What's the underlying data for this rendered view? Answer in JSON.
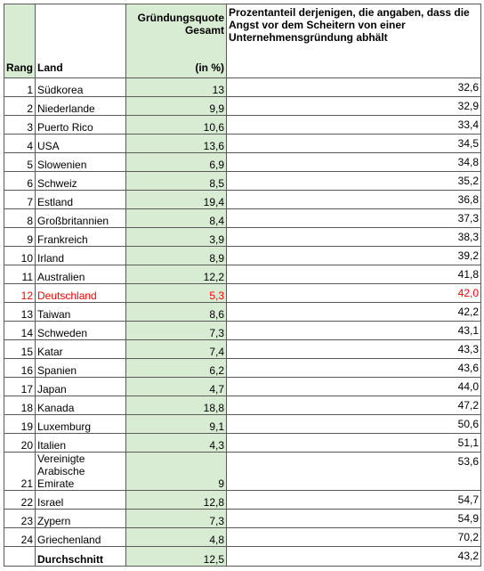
{
  "table": {
    "header": {
      "rank": "Rang",
      "country": "Land",
      "quota_title": "Gründungsquote Gesamt",
      "quota_unit": "(in %)",
      "fear": "Prozentanteil derjenigen, die angaben, dass die Angst vor dem Scheitern von einer Unternehmensgründung abhält"
    },
    "rows": [
      {
        "rank": 1,
        "country": "Südkorea",
        "quota": "13",
        "fear": "32,6"
      },
      {
        "rank": 2,
        "country": "Niederlande",
        "quota": "9,9",
        "fear": "32,9"
      },
      {
        "rank": 3,
        "country": "Puerto Rico",
        "quota": "10,6",
        "fear": "33,4"
      },
      {
        "rank": 4,
        "country": "USA",
        "quota": "13,6",
        "fear": "34,5"
      },
      {
        "rank": 5,
        "country": "Slowenien",
        "quota": "6,9",
        "fear": "34,8"
      },
      {
        "rank": 6,
        "country": "Schweiz",
        "quota": "8,5",
        "fear": "35,2"
      },
      {
        "rank": 7,
        "country": "Estland",
        "quota": "19,4",
        "fear": "36,8"
      },
      {
        "rank": 8,
        "country": "Großbritannien",
        "quota": "8,4",
        "fear": "37,3"
      },
      {
        "rank": 9,
        "country": "Frankreich",
        "quota": "3,9",
        "fear": "38,3"
      },
      {
        "rank": 10,
        "country": "Irland",
        "quota": "8,9",
        "fear": "39,2"
      },
      {
        "rank": 11,
        "country": "Australien",
        "quota": "12,2",
        "fear": "41,8"
      },
      {
        "rank": 12,
        "country": "Deutschland",
        "quota": "5,3",
        "fear": "42,0",
        "color": "#ff0000"
      },
      {
        "rank": 13,
        "country": "Taiwan",
        "quota": "8,6",
        "fear": "42,2"
      },
      {
        "rank": 14,
        "country": "Schweden",
        "quota": "7,3",
        "fear": "43,1"
      },
      {
        "rank": 15,
        "country": "Katar",
        "quota": "7,4",
        "fear": "43,3"
      },
      {
        "rank": 16,
        "country": "Spanien",
        "quota": "6,2",
        "fear": "43,6"
      },
      {
        "rank": 17,
        "country": "Japan",
        "quota": "4,7",
        "fear": "44,0"
      },
      {
        "rank": 18,
        "country": "Kanada",
        "quota": "18,8",
        "fear": "47,2"
      },
      {
        "rank": 19,
        "country": "Luxemburg",
        "quota": "9,1",
        "fear": "50,6"
      },
      {
        "rank": 20,
        "country": "Italien",
        "quota": "4,3",
        "fear": "51,1"
      },
      {
        "rank": 21,
        "country": "Vereinigte Arabische Emirate",
        "quota": "9",
        "fear": "53,6"
      },
      {
        "rank": 22,
        "country": "Israel",
        "quota": "12,8",
        "fear": "54,7"
      },
      {
        "rank": 23,
        "country": "Zypern",
        "quota": "7,3",
        "fear": "54,9"
      },
      {
        "rank": 24,
        "country": "Griechenland",
        "quota": "4,8",
        "fear": "70,2"
      }
    ],
    "average": {
      "country": "Durchschnitt",
      "quota": "12,5",
      "fear": "43,2"
    }
  }
}
